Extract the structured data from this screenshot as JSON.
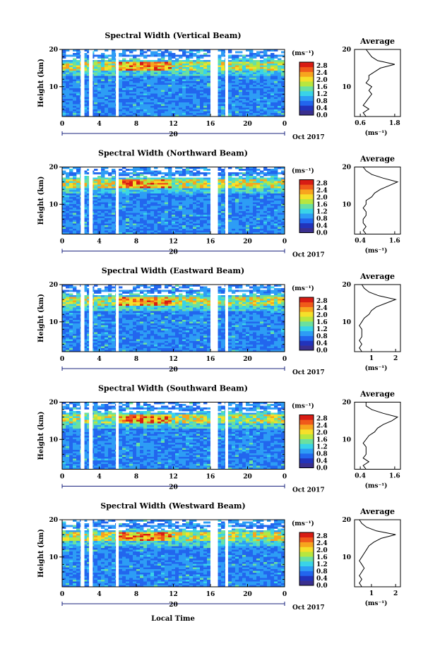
{
  "figure": {
    "xlabel": "Local Time",
    "date_label": "Oct 2017",
    "day_label": "20"
  },
  "colors": {
    "scale": [
      "#3a2f8f",
      "#2233bb",
      "#2266ee",
      "#2d9df5",
      "#39d3e8",
      "#6ae0a0",
      "#b7e63f",
      "#f5e02a",
      "#f7a51e",
      "#f05a1a",
      "#d81c14"
    ],
    "axis": "#000000",
    "marker": "#1a237e"
  },
  "chart_data": [
    {
      "type": "heatmap",
      "title": "Spectral Width (Vertical Beam)",
      "ylabel": "Height (km)",
      "x_ticks": [
        "0",
        "4",
        "8",
        "12",
        "16",
        "20",
        "0"
      ],
      "x_range": [
        0,
        24
      ],
      "y_ticks": [
        "20",
        "10"
      ],
      "y_range": [
        2,
        20
      ],
      "colorbar": {
        "unit": "(ms⁻¹)",
        "ticks": [
          "2.8",
          "2.4",
          "2.0",
          "1.6",
          "1.2",
          "0.8",
          "0.4",
          "0.0"
        ],
        "range": [
          0,
          3.0
        ]
      },
      "gaps_hours": [
        [
          2.0,
          2.4
        ],
        [
          2.9,
          3.3
        ],
        [
          5.8,
          6.1
        ],
        [
          16.0,
          16.8
        ],
        [
          17.6,
          17.9
        ]
      ],
      "profile": {
        "title": "Average",
        "xlabel": "(ms⁻¹)",
        "x_ticks": [
          "0.6",
          "1.8"
        ],
        "x_range": [
          0.4,
          2.0
        ],
        "height_km": [
          2,
          3,
          4,
          5,
          6,
          7,
          8,
          9,
          10,
          11,
          12,
          13,
          14,
          15,
          16,
          17,
          18,
          19,
          20
        ],
        "width": [
          0.8,
          0.7,
          0.9,
          0.7,
          0.8,
          0.9,
          1.0,
          0.9,
          1.0,
          0.8,
          0.9,
          0.9,
          1.1,
          1.3,
          1.8,
          1.2,
          1.0,
          0.9,
          0.8
        ]
      }
    },
    {
      "type": "heatmap",
      "title": "Spectral Width (Northward Beam)",
      "ylabel": "Height (km)",
      "x_ticks": [
        "0",
        "4",
        "8",
        "12",
        "16",
        "20",
        "0"
      ],
      "x_range": [
        0,
        24
      ],
      "y_ticks": [
        "20",
        "10"
      ],
      "y_range": [
        2,
        20
      ],
      "colorbar": {
        "unit": "(ms⁻¹)",
        "ticks": [
          "2.8",
          "2.4",
          "2.0",
          "1.6",
          "1.2",
          "0.8",
          "0.4",
          "0.0"
        ],
        "range": [
          0,
          3.0
        ]
      },
      "gaps_hours": [
        [
          2.0,
          2.4
        ],
        [
          2.9,
          3.3
        ],
        [
          5.8,
          6.1
        ],
        [
          16.0,
          16.8
        ],
        [
          17.6,
          17.9
        ]
      ],
      "profile": {
        "title": "Average",
        "xlabel": "(ms⁻¹)",
        "x_ticks": [
          "0.4",
          "1.6"
        ],
        "x_range": [
          0.2,
          1.8
        ],
        "height_km": [
          2,
          3,
          4,
          5,
          6,
          7,
          8,
          9,
          10,
          11,
          12,
          13,
          14,
          15,
          16,
          17,
          18,
          19,
          20
        ],
        "width": [
          0.6,
          0.5,
          0.6,
          0.5,
          0.5,
          0.6,
          0.6,
          0.5,
          0.6,
          0.6,
          0.8,
          0.9,
          1.1,
          1.4,
          1.7,
          1.2,
          0.8,
          0.6,
          0.5
        ]
      }
    },
    {
      "type": "heatmap",
      "title": "Spectral Width (Eastward Beam)",
      "ylabel": "Height (km)",
      "x_ticks": [
        "0",
        "4",
        "8",
        "12",
        "16",
        "20",
        "0"
      ],
      "x_range": [
        0,
        24
      ],
      "y_ticks": [
        "20",
        "10"
      ],
      "y_range": [
        2,
        20
      ],
      "colorbar": {
        "unit": "(ms⁻¹)",
        "ticks": [
          "2.8",
          "2.4",
          "2.0",
          "1.6",
          "1.2",
          "0.8",
          "0.4",
          "0.0"
        ],
        "range": [
          0,
          3.0
        ]
      },
      "gaps_hours": [
        [
          2.0,
          2.4
        ],
        [
          2.9,
          3.3
        ],
        [
          5.8,
          6.1
        ],
        [
          16.0,
          16.8
        ],
        [
          17.6,
          17.9
        ]
      ],
      "profile": {
        "title": "Average",
        "xlabel": "(ms⁻¹)",
        "x_ticks": [
          "1",
          "2"
        ],
        "x_range": [
          0.3,
          2.2
        ],
        "height_km": [
          2,
          3,
          4,
          5,
          6,
          7,
          8,
          9,
          10,
          11,
          12,
          13,
          14,
          15,
          16,
          17,
          18,
          19,
          20
        ],
        "width": [
          0.6,
          0.5,
          0.6,
          0.5,
          0.6,
          0.6,
          0.6,
          0.5,
          0.6,
          0.7,
          0.9,
          1.0,
          1.2,
          1.6,
          2.0,
          1.3,
          0.9,
          0.7,
          0.6
        ]
      }
    },
    {
      "type": "heatmap",
      "title": "Spectral Width (Southward Beam)",
      "ylabel": "Height (km)",
      "x_ticks": [
        "0",
        "4",
        "8",
        "12",
        "16",
        "20",
        "0"
      ],
      "x_range": [
        0,
        24
      ],
      "y_ticks": [
        "20",
        "10"
      ],
      "y_range": [
        2,
        20
      ],
      "colorbar": {
        "unit": "(ms⁻¹)",
        "ticks": [
          "2.8",
          "2.4",
          "2.0",
          "1.6",
          "1.2",
          "0.8",
          "0.4",
          "0.0"
        ],
        "range": [
          0,
          3.0
        ]
      },
      "gaps_hours": [
        [
          2.0,
          2.4
        ],
        [
          2.9,
          3.3
        ],
        [
          5.8,
          6.1
        ],
        [
          16.0,
          16.8
        ],
        [
          17.6,
          17.9
        ]
      ],
      "profile": {
        "title": "Average",
        "xlabel": "(ms⁻¹)",
        "x_ticks": [
          "0.4",
          "1.6"
        ],
        "x_range": [
          0.2,
          1.8
        ],
        "height_km": [
          2,
          3,
          4,
          5,
          6,
          7,
          8,
          9,
          10,
          11,
          12,
          13,
          14,
          15,
          16,
          17,
          18,
          19,
          20
        ],
        "width": [
          0.6,
          0.5,
          0.7,
          0.5,
          0.6,
          0.6,
          0.6,
          0.5,
          0.6,
          0.7,
          0.9,
          1.0,
          1.2,
          1.5,
          1.7,
          1.2,
          0.8,
          0.6,
          0.6
        ]
      }
    },
    {
      "type": "heatmap",
      "title": "Spectral Width (Westward Beam)",
      "ylabel": "Height (km)",
      "x_ticks": [
        "0",
        "4",
        "8",
        "12",
        "16",
        "20",
        "0"
      ],
      "x_range": [
        0,
        24
      ],
      "y_ticks": [
        "20",
        "10"
      ],
      "y_range": [
        2,
        20
      ],
      "colorbar": {
        "unit": "(ms⁻¹)",
        "ticks": [
          "2.8",
          "2.4",
          "2.0",
          "1.6",
          "1.2",
          "0.8",
          "0.4",
          "0.0"
        ],
        "range": [
          0,
          3.0
        ]
      },
      "gaps_hours": [
        [
          2.0,
          2.4
        ],
        [
          2.9,
          3.3
        ],
        [
          5.8,
          6.1
        ],
        [
          16.0,
          16.8
        ],
        [
          17.6,
          17.9
        ]
      ],
      "profile": {
        "title": "Average",
        "xlabel": "(ms⁻¹)",
        "x_ticks": [
          "1",
          "2"
        ],
        "x_range": [
          0.3,
          2.2
        ],
        "height_km": [
          2,
          3,
          4,
          5,
          6,
          7,
          8,
          9,
          10,
          11,
          12,
          13,
          14,
          15,
          16,
          17,
          18,
          19,
          20
        ],
        "width": [
          0.6,
          0.5,
          0.6,
          0.5,
          0.6,
          0.7,
          0.6,
          0.5,
          0.6,
          0.7,
          0.8,
          0.9,
          1.1,
          1.4,
          2.0,
          1.2,
          0.8,
          0.6,
          0.5
        ]
      }
    }
  ]
}
